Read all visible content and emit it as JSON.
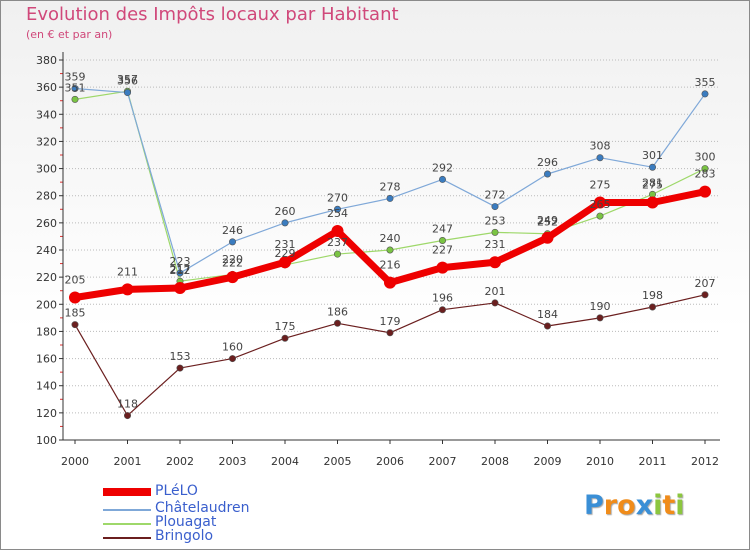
{
  "header": {
    "title": "Evolution des Impôts locaux par Habitant",
    "subtitle": "(en € et par an)"
  },
  "colors": {
    "title": "#d0487a",
    "legend_text": "#3a5fcd",
    "axis": "#333333",
    "grid": "#bbbbbb",
    "tick_marks": "#e03030"
  },
  "logo": {
    "text": "Proxiti",
    "letters": [
      {
        "ch": "P",
        "color": "#3a8fd6"
      },
      {
        "ch": "r",
        "color": "#f08c1a"
      },
      {
        "ch": "o",
        "color": "#f08c1a"
      },
      {
        "ch": "x",
        "color": "#3a8fd6"
      },
      {
        "ch": "i",
        "color": "#8cc63f"
      },
      {
        "ch": "t",
        "color": "#f08c1a"
      },
      {
        "ch": "i",
        "color": "#8cc63f"
      }
    ]
  },
  "chart_data": {
    "type": "line",
    "title": "Evolution des Impôts locaux par Habitant",
    "subtitle": "(en € et par an)",
    "xlabel": "",
    "ylabel": "",
    "ylim": [
      100,
      380
    ],
    "yticks": [
      100,
      120,
      140,
      160,
      180,
      200,
      220,
      240,
      260,
      280,
      300,
      320,
      340,
      360,
      380
    ],
    "grid": "horizontal dotted",
    "legend_position": "bottom-left",
    "x": [
      "2000",
      "2001",
      "2002",
      "2003",
      "2004",
      "2005",
      "2006",
      "2007",
      "2008",
      "2009",
      "2010",
      "2011",
      "2012"
    ],
    "series": [
      {
        "name": "PLéLO",
        "color": "#ee0000",
        "marker": "#ee0000",
        "width": 7,
        "label_dy": -14,
        "values": [
          205,
          211,
          212,
          220,
          231,
          254,
          216,
          227,
          231,
          249,
          275,
          275,
          283
        ]
      },
      {
        "name": "Châtelaudren",
        "color": "#7fa8d8",
        "marker": "#3a7cc0",
        "width": 1.2,
        "label_dy": -8,
        "values": [
          359,
          356,
          223,
          246,
          260,
          270,
          278,
          292,
          272,
          296,
          308,
          301,
          355
        ]
      },
      {
        "name": "Plouagat",
        "color": "#9ed86a",
        "marker": "#7ac443",
        "width": 1.2,
        "label_dy": -8,
        "values": [
          351,
          357,
          217,
          222,
          229,
          237,
          240,
          247,
          253,
          252,
          265,
          281,
          300
        ]
      },
      {
        "name": "Bringolo",
        "color": "#6b1f1f",
        "marker": "#6b1f1f",
        "width": 1.2,
        "label_dy": -8,
        "values": [
          185,
          118,
          153,
          160,
          175,
          186,
          179,
          196,
          201,
          184,
          190,
          198,
          207
        ]
      }
    ]
  }
}
